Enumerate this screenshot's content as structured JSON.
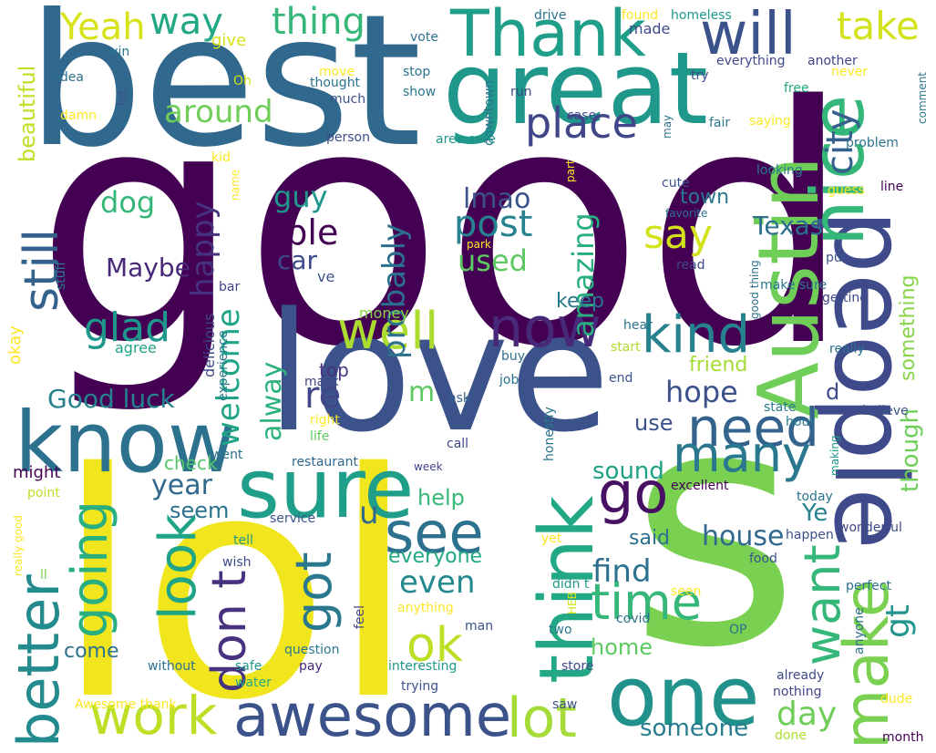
{
  "palette": {
    "dark_purple": "#440154",
    "indigo": "#3b528b",
    "blue": "#2c728e",
    "teal": "#21918c",
    "green": "#27ad81",
    "light_green": "#5ec962",
    "lime": "#addc30",
    "yellow": "#fde725"
  },
  "words": [
    {
      "text": "good",
      "color": "#440154"
    },
    {
      "text": "lol",
      "color": "#f1e51d"
    },
    {
      "text": "s",
      "color": "#7ad151"
    },
    {
      "text": "best",
      "color": "#31688e"
    },
    {
      "text": "love",
      "color": "#3b528b"
    },
    {
      "text": "great",
      "color": "#1f988b"
    },
    {
      "text": "people",
      "color": "#3e4a89"
    },
    {
      "text": "Austin",
      "color": "#6ece58"
    },
    {
      "text": "nice",
      "color": "#35b779"
    },
    {
      "text": "know",
      "color": "#2c728e"
    },
    {
      "text": "sure",
      "color": "#1f9e89"
    },
    {
      "text": "think",
      "color": "#22a884"
    },
    {
      "text": "one",
      "color": "#21918c"
    },
    {
      "text": "Thank",
      "color": "#1f9e89"
    },
    {
      "text": "will",
      "color": "#3b528b"
    },
    {
      "text": "make",
      "color": "#7ad151"
    },
    {
      "text": "awesome",
      "color": "#3b528b"
    },
    {
      "text": "need",
      "color": "#33638d"
    },
    {
      "text": "better",
      "color": "#238a8d"
    },
    {
      "text": "time",
      "color": "#35b779"
    },
    {
      "text": "see",
      "color": "#2c728e"
    },
    {
      "text": "go",
      "color": "#471063"
    },
    {
      "text": "now",
      "color": "#482878"
    },
    {
      "text": "many",
      "color": "#2a788e"
    },
    {
      "text": "work",
      "color": "#bddf26"
    },
    {
      "text": "lot",
      "color": "#a5db36"
    },
    {
      "text": "well",
      "color": "#addc30"
    },
    {
      "text": "kind",
      "color": "#26828e"
    },
    {
      "text": "want",
      "color": "#35b779"
    },
    {
      "text": "going",
      "color": "#29af7f"
    },
    {
      "text": "look",
      "color": "#20a486"
    },
    {
      "text": "got",
      "color": "#2a788e"
    },
    {
      "text": "don t",
      "color": "#46327e"
    },
    {
      "text": "ok",
      "color": "#bddf26"
    },
    {
      "text": "still",
      "color": "#33638d"
    },
    {
      "text": "place",
      "color": "#404688"
    },
    {
      "text": "way",
      "color": "#22a884"
    },
    {
      "text": "thing",
      "color": "#35b779"
    },
    {
      "text": "take",
      "color": "#d2e21b"
    },
    {
      "text": "Yeah",
      "color": "#d8e219"
    },
    {
      "text": "around",
      "color": "#6ece58"
    },
    {
      "text": "post",
      "color": "#26828e"
    },
    {
      "text": "able",
      "color": "#440154"
    },
    {
      "text": "probably",
      "color": "#2d708e"
    },
    {
      "text": "amazing",
      "color": "#29af7f"
    },
    {
      "text": "say",
      "color": "#d2e21b"
    },
    {
      "text": "city",
      "color": "#355f8d"
    },
    {
      "text": "Texas",
      "color": "#2d708e"
    },
    {
      "text": "town",
      "color": "#2a788e"
    },
    {
      "text": "guy",
      "color": "#1f988b"
    },
    {
      "text": "car",
      "color": "#3e4a89"
    },
    {
      "text": "lmao",
      "color": "#3b528b"
    },
    {
      "text": "used",
      "color": "#5ec962"
    },
    {
      "text": "dog",
      "color": "#35b779"
    },
    {
      "text": "happy",
      "color": "#46327e"
    },
    {
      "text": "Maybe",
      "color": "#482878"
    },
    {
      "text": "glad",
      "color": "#1f988b"
    },
    {
      "text": "welcome",
      "color": "#20a486"
    },
    {
      "text": "beautiful",
      "color": "#c2df23"
    },
    {
      "text": "hope",
      "color": "#3b528b"
    },
    {
      "text": "friend",
      "color": "#a5db36"
    },
    {
      "text": "something",
      "color": "#86d549"
    },
    {
      "text": "though",
      "color": "#6ece58"
    },
    {
      "text": "Good luck",
      "color": "#26828e"
    },
    {
      "text": "re",
      "color": "#404688"
    },
    {
      "text": "alway",
      "color": "#2db27d"
    },
    {
      "text": "m",
      "color": "#5ec962"
    },
    {
      "text": "use",
      "color": "#3b528b"
    },
    {
      "text": "keep",
      "color": "#2a788e"
    },
    {
      "text": "d",
      "color": "#3e4a89"
    },
    {
      "text": "gt",
      "color": "#1f948c"
    },
    {
      "text": "year",
      "color": "#31688e"
    },
    {
      "text": "check",
      "color": "#54c568"
    },
    {
      "text": "seem",
      "color": "#2c728e"
    },
    {
      "text": "sound",
      "color": "#1fa187"
    },
    {
      "text": "day",
      "color": "#6ece58"
    },
    {
      "text": "help",
      "color": "#38b977"
    },
    {
      "text": "u",
      "color": "#31688e"
    },
    {
      "text": "Ye",
      "color": "#26828e"
    },
    {
      "text": "house",
      "color": "#31688e"
    },
    {
      "text": "find",
      "color": "#2c728e"
    },
    {
      "text": "even",
      "color": "#23898e"
    },
    {
      "text": "everyone",
      "color": "#22a884"
    },
    {
      "text": "said",
      "color": "#2d708e"
    },
    {
      "text": "home",
      "color": "#5ec962"
    },
    {
      "text": "someone",
      "color": "#287d8e"
    },
    {
      "text": "come",
      "color": "#2c728e"
    },
    {
      "text": "might",
      "color": "#440154"
    },
    {
      "text": "top",
      "color": "#46327e"
    },
    {
      "text": "okay",
      "color": "#fde725"
    },
    {
      "text": "agree",
      "color": "#20a486"
    },
    {
      "text": "delicious",
      "color": "#3e4a89"
    },
    {
      "text": "experience",
      "color": "#2a788e"
    },
    {
      "text": "money",
      "color": "#86d549"
    },
    {
      "text": "bar",
      "color": "#414487"
    },
    {
      "text": "stuff",
      "color": "#287d8e"
    },
    {
      "text": "ve",
      "color": "#3b528b"
    },
    {
      "text": "mask",
      "color": "#404688"
    },
    {
      "text": "ask",
      "color": "#33638d"
    },
    {
      "text": "end",
      "color": "#3b528b"
    },
    {
      "text": "job",
      "color": "#2c728e"
    },
    {
      "text": "buy",
      "color": "#2d708e"
    },
    {
      "text": "start",
      "color": "#addc30"
    },
    {
      "text": "hear",
      "color": "#2c728e"
    },
    {
      "text": "state",
      "color": "#2a788e"
    },
    {
      "text": "believe",
      "color": "#3b528b"
    },
    {
      "text": "hour",
      "color": "#2a788e"
    },
    {
      "text": "making",
      "color": "#1f988b"
    },
    {
      "text": "right",
      "color": "#fde725"
    },
    {
      "text": "life",
      "color": "#5ec962"
    },
    {
      "text": "went",
      "color": "#2c728e"
    },
    {
      "text": "call",
      "color": "#3e4a89"
    },
    {
      "text": "restaurant",
      "color": "#31688e"
    },
    {
      "text": "honestly",
      "color": "#2a788e"
    },
    {
      "text": "week",
      "color": "#414487"
    },
    {
      "text": "excellent",
      "color": "#440154"
    },
    {
      "text": "today",
      "color": "#2c728e"
    },
    {
      "text": "happen",
      "color": "#3b528b"
    },
    {
      "text": "wonderful",
      "color": "#3e4a89"
    },
    {
      "text": "point",
      "color": "#bddf26"
    },
    {
      "text": "service",
      "color": "#3b528b"
    },
    {
      "text": "tell",
      "color": "#1f988b"
    },
    {
      "text": "wish",
      "color": "#3e4a89"
    },
    {
      "text": "really good",
      "color": "#fde725"
    },
    {
      "text": "ll",
      "color": "#7ad151"
    },
    {
      "text": "yet",
      "color": "#fde725"
    },
    {
      "text": "food",
      "color": "#3b528b"
    },
    {
      "text": "perfect",
      "color": "#2c728e"
    },
    {
      "text": "didn t",
      "color": "#1f988b"
    },
    {
      "text": "seen",
      "color": "#fde725"
    },
    {
      "text": "HEB",
      "color": "#d2e21b"
    },
    {
      "text": "anything",
      "color": "#fde725"
    },
    {
      "text": "feel",
      "color": "#414487"
    },
    {
      "text": "man",
      "color": "#3b528b"
    },
    {
      "text": "covid",
      "color": "#2c728e"
    },
    {
      "text": "two",
      "color": "#2a788e"
    },
    {
      "text": "OP",
      "color": "#2c728e"
    },
    {
      "text": "anyone",
      "color": "#2d708e"
    },
    {
      "text": "question",
      "color": "#2a788e"
    },
    {
      "text": "pay",
      "color": "#482878"
    },
    {
      "text": "without",
      "color": "#2c728e"
    },
    {
      "text": "interesting",
      "color": "#1f988b"
    },
    {
      "text": "safe",
      "color": "#1f988b"
    },
    {
      "text": "water",
      "color": "#22a884"
    },
    {
      "text": "trying",
      "color": "#3b528b"
    },
    {
      "text": "store",
      "color": "#3e4a89"
    },
    {
      "text": "already",
      "color": "#3e4a89"
    },
    {
      "text": "nothing",
      "color": "#414487"
    },
    {
      "text": "dude",
      "color": "#fde725"
    },
    {
      "text": "Awesome thank",
      "color": "#fde725"
    },
    {
      "text": "saw",
      "color": "#3b528b"
    },
    {
      "text": "done",
      "color": "#addc30"
    },
    {
      "text": "month",
      "color": "#440154"
    },
    {
      "text": "give",
      "color": "#d8e219"
    },
    {
      "text": "drive",
      "color": "#2c728e"
    },
    {
      "text": "found",
      "color": "#fde725"
    },
    {
      "text": "homeless",
      "color": "#1f988b"
    },
    {
      "text": "vote",
      "color": "#2c728e"
    },
    {
      "text": "made",
      "color": "#3e4a89"
    },
    {
      "text": "win",
      "color": "#2c728e"
    },
    {
      "text": "idea",
      "color": "#2c728e"
    },
    {
      "text": "Oh",
      "color": "#d2e21b"
    },
    {
      "text": "damn",
      "color": "#fde725"
    },
    {
      "text": "move",
      "color": "#fde725"
    },
    {
      "text": "thought",
      "color": "#2c728e"
    },
    {
      "text": "much",
      "color": "#3b528b"
    },
    {
      "text": "stop",
      "color": "#2c728e"
    },
    {
      "text": "show",
      "color": "#2a788e"
    },
    {
      "text": "run",
      "color": "#3e4a89"
    },
    {
      "text": "let",
      "color": "#3b528b"
    },
    {
      "text": "everything",
      "color": "#3e4a89"
    },
    {
      "text": "another",
      "color": "#414487"
    },
    {
      "text": "try",
      "color": "#3e4a89"
    },
    {
      "text": "never",
      "color": "#fde725"
    },
    {
      "text": "comment",
      "color": "#2a788e"
    },
    {
      "text": "free",
      "color": "#22a884"
    },
    {
      "text": "saying",
      "color": "#fde725"
    },
    {
      "text": "downtown",
      "color": "#2c728e"
    },
    {
      "text": "case",
      "color": "#3e4a89"
    },
    {
      "text": "may",
      "color": "#2d708e"
    },
    {
      "text": "area care",
      "color": "#1f988b"
    },
    {
      "text": "fair",
      "color": "#2a788e"
    },
    {
      "text": "problem",
      "color": "#2c728e"
    },
    {
      "text": "person",
      "color": "#3e4a89"
    },
    {
      "text": "kid",
      "color": "#fde725"
    },
    {
      "text": "name",
      "color": "#fde725"
    },
    {
      "text": "part",
      "color": "#fde725"
    },
    {
      "text": "cute",
      "color": "#3b528b"
    },
    {
      "text": "looking",
      "color": "#2a788e"
    },
    {
      "text": "guess",
      "color": "#fde725"
    },
    {
      "text": "line",
      "color": "#440154"
    },
    {
      "text": "favorite",
      "color": "#2c728e"
    },
    {
      "text": "park",
      "color": "#fde725"
    },
    {
      "text": "read",
      "color": "#3e4a89"
    },
    {
      "text": "good thing",
      "color": "#2c728e"
    },
    {
      "text": "make sure",
      "color": "#2a788e"
    },
    {
      "text": "put",
      "color": "#3b528b"
    },
    {
      "text": "getting",
      "color": "#3e4a89"
    },
    {
      "text": "really",
      "color": "#2c728e"
    }
  ]
}
